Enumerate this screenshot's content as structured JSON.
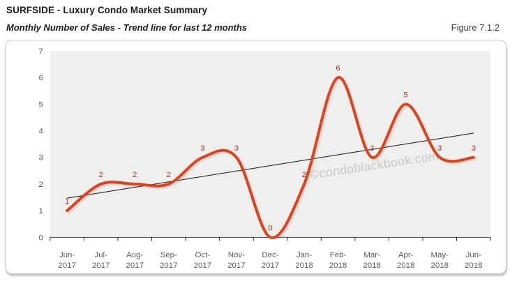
{
  "header": {
    "title": "SURFSIDE - Luxury Condo Market Summary",
    "subtitle": "Monthly Number of Sales - Trend line for last 12 months",
    "figure_label": "Figure 7.1.2"
  },
  "chart_data": {
    "type": "line",
    "title": "Monthly Number of Sales - Trend line for last 12 months",
    "categories": [
      "Jun-2017",
      "Jul-2017",
      "Aug-2017",
      "Sep-2017",
      "Oct-2017",
      "Nov-2017",
      "Dec-2017",
      "Jan-2018",
      "Feb-2018",
      "Mar-2018",
      "Apr-2018",
      "May-2018",
      "Jun-2018"
    ],
    "series": [
      {
        "name": "Monthly Number of Sales",
        "type": "smooth-line",
        "values": [
          1,
          2,
          2,
          2,
          3,
          3,
          0,
          2,
          6,
          3,
          5,
          3,
          3
        ]
      },
      {
        "name": "Trend line",
        "type": "linear-trend",
        "endpoints": [
          1.47,
          3.91
        ]
      }
    ],
    "ylim": [
      0,
      7
    ],
    "ytick_step": 1,
    "grid": false,
    "legend": "none",
    "data_labels": true,
    "watermark": "©condoblackbook.com",
    "colors": {
      "line": "#cc4a2c",
      "trend": "#262626",
      "data_label": "#943634",
      "axis_text": "#595959",
      "axis_line": "#262626",
      "plot_bg": "#f0efed",
      "watermark": "#c8c8c6"
    }
  }
}
